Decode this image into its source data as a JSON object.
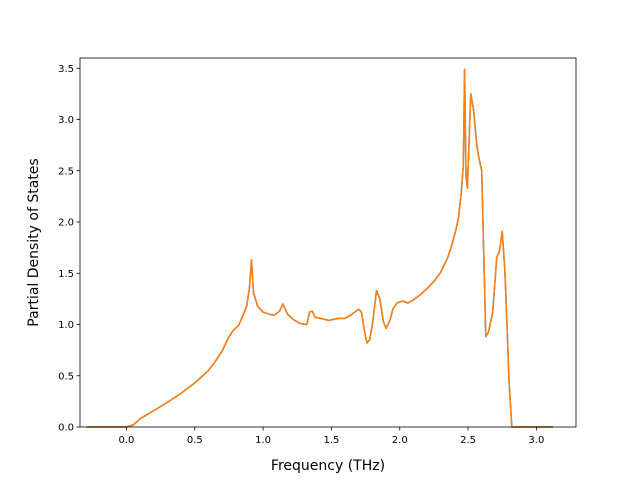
{
  "chart_data": {
    "type": "line",
    "title": "",
    "xlabel": "Frequency (THz)",
    "ylabel": "Partial Density of States",
    "xlim": [
      -0.34,
      3.29
    ],
    "ylim": [
      0.0,
      3.6
    ],
    "xticks": [
      0.0,
      0.5,
      1.0,
      1.5,
      2.0,
      2.5,
      3.0
    ],
    "xtick_labels": [
      "0.0",
      "0.5",
      "1.0",
      "1.5",
      "2.0",
      "2.5",
      "3.0"
    ],
    "yticks": [
      0.0,
      0.5,
      1.0,
      1.5,
      2.0,
      2.5,
      3.0,
      3.5
    ],
    "ytick_labels": [
      "0.0",
      "0.5",
      "1.0",
      "1.5",
      "2.0",
      "2.5",
      "3.0",
      "3.5"
    ],
    "grid": false,
    "legend": "none",
    "series": [
      {
        "color": "#1f77b4",
        "x": [
          -0.29,
          0.0,
          0.05,
          0.1,
          0.15,
          0.2,
          0.3,
          0.4,
          0.5,
          0.6,
          0.65,
          0.7,
          0.75,
          0.78,
          0.82,
          0.85,
          0.88,
          0.9,
          0.915,
          0.93,
          0.96,
          1.0,
          1.05,
          1.08,
          1.12,
          1.145,
          1.18,
          1.22,
          1.27,
          1.32,
          1.34,
          1.36,
          1.38,
          1.42,
          1.48,
          1.55,
          1.6,
          1.65,
          1.7,
          1.72,
          1.74,
          1.76,
          1.78,
          1.8,
          1.83,
          1.855,
          1.88,
          1.9,
          1.93,
          1.95,
          1.98,
          2.02,
          2.06,
          2.1,
          2.15,
          2.2,
          2.25,
          2.3,
          2.35,
          2.38,
          2.41,
          2.43,
          2.45,
          2.465,
          2.475,
          2.485,
          2.495,
          2.52,
          2.54,
          2.56,
          2.57,
          2.58,
          2.6,
          2.63,
          2.65,
          2.68,
          2.71,
          2.73,
          2.75,
          2.77,
          2.785,
          2.8,
          2.82,
          2.85,
          3.0,
          3.12
        ],
        "y": [
          0.0,
          0.0,
          0.02,
          0.08,
          0.12,
          0.16,
          0.24,
          0.33,
          0.43,
          0.55,
          0.64,
          0.74,
          0.88,
          0.94,
          0.99,
          1.08,
          1.18,
          1.35,
          1.63,
          1.31,
          1.18,
          1.12,
          1.1,
          1.09,
          1.13,
          1.2,
          1.1,
          1.05,
          1.01,
          1.0,
          1.12,
          1.13,
          1.07,
          1.06,
          1.04,
          1.06,
          1.06,
          1.1,
          1.15,
          1.12,
          0.95,
          0.82,
          0.85,
          1.0,
          1.33,
          1.25,
          1.03,
          0.96,
          1.05,
          1.15,
          1.21,
          1.23,
          1.21,
          1.24,
          1.29,
          1.35,
          1.42,
          1.51,
          1.65,
          1.77,
          1.92,
          2.04,
          2.28,
          2.55,
          3.49,
          2.45,
          2.33,
          3.25,
          3.1,
          2.8,
          2.7,
          2.62,
          2.5,
          0.88,
          0.93,
          1.12,
          1.65,
          1.72,
          1.91,
          1.52,
          1.0,
          0.45,
          0.0,
          0.0,
          0.0,
          0.0
        ]
      },
      {
        "color": "#ff7f0e",
        "x": [
          -0.29,
          0.0,
          0.05,
          0.1,
          0.15,
          0.2,
          0.3,
          0.4,
          0.5,
          0.6,
          0.65,
          0.7,
          0.75,
          0.78,
          0.82,
          0.85,
          0.88,
          0.9,
          0.915,
          0.93,
          0.96,
          1.0,
          1.05,
          1.08,
          1.12,
          1.145,
          1.18,
          1.22,
          1.27,
          1.32,
          1.34,
          1.36,
          1.38,
          1.42,
          1.48,
          1.55,
          1.6,
          1.65,
          1.7,
          1.72,
          1.74,
          1.76,
          1.78,
          1.8,
          1.83,
          1.855,
          1.88,
          1.9,
          1.93,
          1.95,
          1.98,
          2.02,
          2.06,
          2.1,
          2.15,
          2.2,
          2.25,
          2.3,
          2.35,
          2.38,
          2.41,
          2.43,
          2.45,
          2.465,
          2.475,
          2.485,
          2.495,
          2.52,
          2.54,
          2.56,
          2.57,
          2.58,
          2.6,
          2.63,
          2.65,
          2.68,
          2.71,
          2.73,
          2.75,
          2.77,
          2.785,
          2.8,
          2.82,
          2.85,
          3.0,
          3.12
        ],
        "y": [
          0.0,
          0.0,
          0.02,
          0.08,
          0.12,
          0.16,
          0.24,
          0.33,
          0.43,
          0.55,
          0.64,
          0.74,
          0.88,
          0.94,
          0.99,
          1.08,
          1.18,
          1.35,
          1.63,
          1.31,
          1.18,
          1.12,
          1.1,
          1.09,
          1.13,
          1.2,
          1.1,
          1.05,
          1.01,
          1.0,
          1.12,
          1.13,
          1.07,
          1.06,
          1.04,
          1.06,
          1.06,
          1.1,
          1.15,
          1.12,
          0.95,
          0.82,
          0.85,
          1.0,
          1.33,
          1.25,
          1.03,
          0.96,
          1.05,
          1.15,
          1.21,
          1.23,
          1.21,
          1.24,
          1.29,
          1.35,
          1.42,
          1.51,
          1.65,
          1.77,
          1.92,
          2.04,
          2.28,
          2.55,
          3.49,
          2.45,
          2.33,
          3.25,
          3.1,
          2.8,
          2.7,
          2.62,
          2.5,
          0.88,
          0.93,
          1.12,
          1.65,
          1.72,
          1.91,
          1.52,
          1.0,
          0.45,
          0.0,
          0.0,
          0.0,
          0.0
        ]
      }
    ]
  }
}
